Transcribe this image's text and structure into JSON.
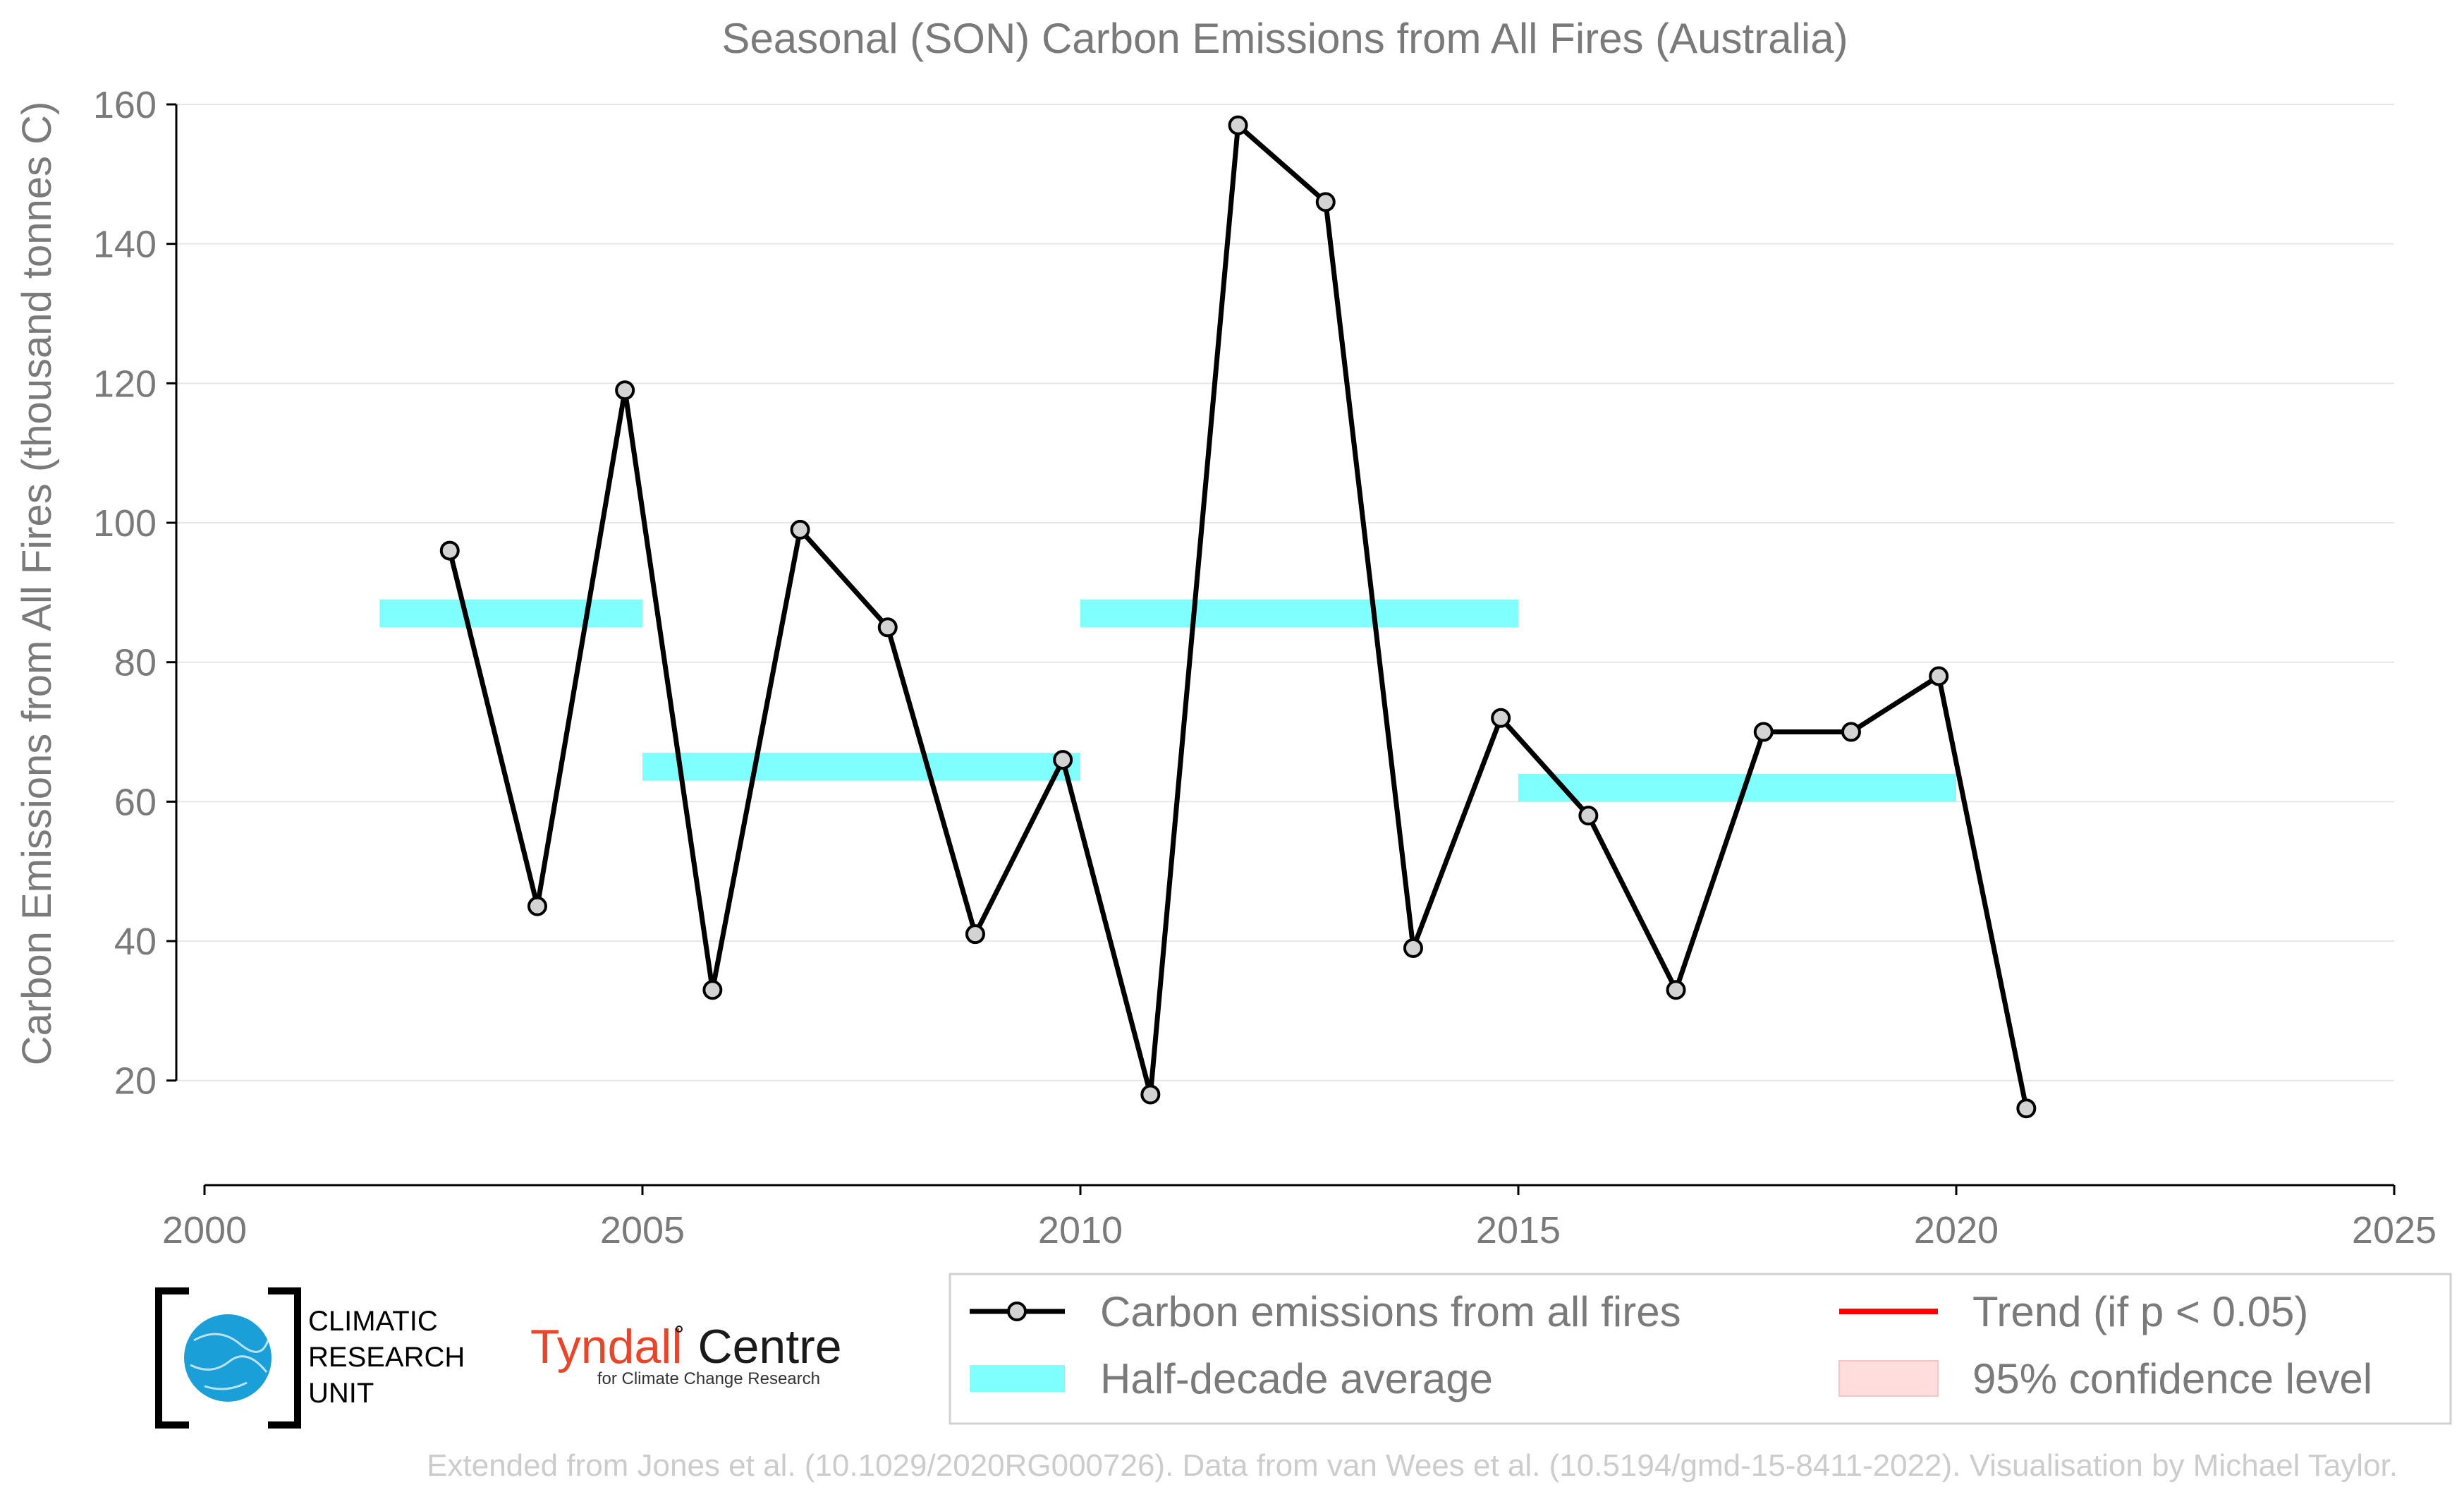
{
  "colors": {
    "line": "#000000",
    "marker_fill": "#d3d3d3",
    "half_decade": "#80ffff",
    "trend": "#ff0000",
    "confidence": "#ffdddd",
    "grid": "#e6e6e6",
    "text": "#7a7a7a",
    "credit": "#cccccc",
    "cru_globe": "#1a9fd8",
    "tyndall_red": "#e8452b"
  },
  "chart_data": {
    "type": "line",
    "title": "Seasonal (SON) Carbon Emissions from All Fires (Australia)",
    "xlabel": "",
    "ylabel": "Carbon Emissions from All Fires (thousand tonnes C)",
    "xlim": [
      2000,
      2025
    ],
    "ylim": [
      5,
      160
    ],
    "x_ticks": [
      2000,
      2005,
      2010,
      2015,
      2020,
      2025
    ],
    "y_ticks": [
      20,
      40,
      60,
      80,
      100,
      120,
      140,
      160
    ],
    "grid": "horizontal",
    "legend_placement": "bottom-right",
    "series": [
      {
        "name": "Carbon emissions from all fires",
        "x": [
          2002.8,
          2003.8,
          2004.8,
          2005.8,
          2006.8,
          2007.8,
          2008.8,
          2009.8,
          2010.8,
          2011.8,
          2012.8,
          2013.8,
          2014.8,
          2015.8,
          2016.8,
          2017.8,
          2018.8,
          2019.8,
          2020.8
        ],
        "values": [
          96,
          45,
          119,
          33,
          99,
          85,
          41,
          66,
          18,
          157,
          146,
          39,
          72,
          58,
          33,
          70,
          70,
          78,
          16
        ]
      }
    ],
    "half_decade_average": [
      {
        "x_start": 2002,
        "x_end": 2005,
        "value": 87
      },
      {
        "x_start": 2005,
        "x_end": 2010,
        "value": 65
      },
      {
        "x_start": 2010,
        "x_end": 2015,
        "value": 87
      },
      {
        "x_start": 2015,
        "x_end": 2020,
        "value": 62
      }
    ],
    "legend": [
      {
        "label": "Carbon emissions from all fires",
        "kind": "line-marker"
      },
      {
        "label": "Trend (if p < 0.05)",
        "kind": "line-red"
      },
      {
        "label": "Half-decade average",
        "kind": "band-cyan"
      },
      {
        "label": "95% confidence level",
        "kind": "patch-pink"
      }
    ]
  },
  "logos": {
    "cru_lines": [
      "CLIMATIC",
      "RESEARCH",
      "UNIT"
    ],
    "tyndall_name": "Tyndall",
    "tyndall_centre": "Centre",
    "tyndall_sub": "for Climate Change Research"
  },
  "credit": "Extended from Jones et al. (10.1029/2020RG000726). Data from van Wees et al. (10.5194/gmd-15-8411-2022). Visualisation by Michael Taylor."
}
